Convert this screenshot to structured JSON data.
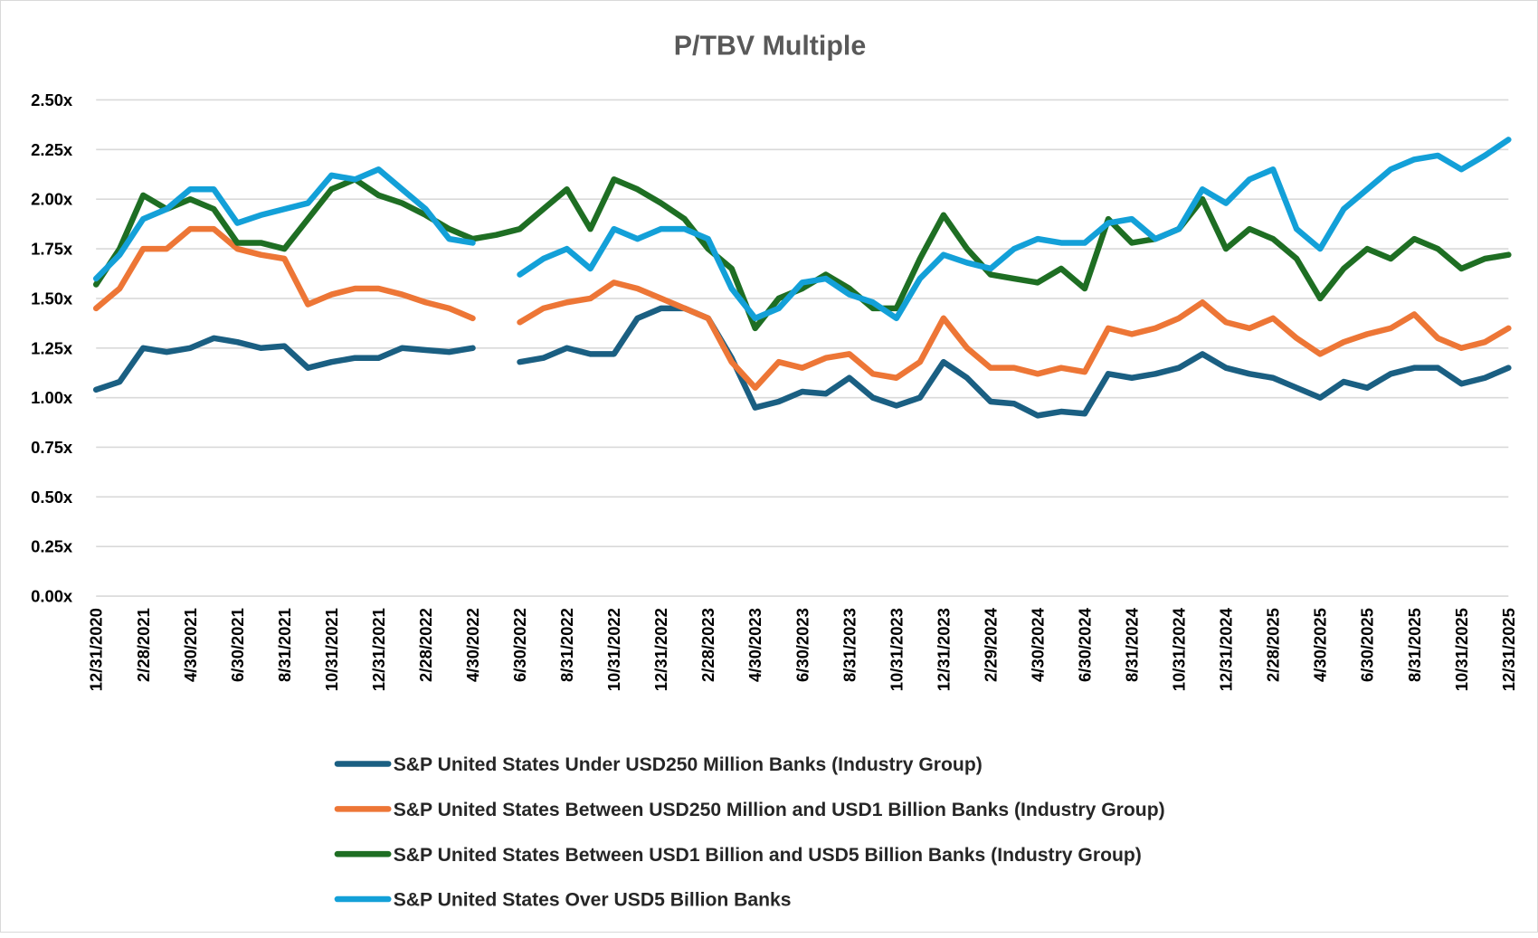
{
  "chart_data": {
    "type": "line",
    "title": "P/TBV Multiple",
    "xlabel": "",
    "ylabel": "",
    "ylim": [
      0,
      2.5
    ],
    "yticks": [
      "0.00x",
      "0.25x",
      "0.50x",
      "0.75x",
      "1.00x",
      "1.25x",
      "1.50x",
      "1.75x",
      "2.00x",
      "2.25x",
      "2.50x"
    ],
    "ytick_values": [
      0,
      0.25,
      0.5,
      0.75,
      1,
      1.25,
      1.5,
      1.75,
      2,
      2.25,
      2.5
    ],
    "grid": true,
    "legend_position": "bottom",
    "xtick_labels": [
      "12/31/2020",
      "2/28/2021",
      "4/30/2021",
      "6/30/2021",
      "8/31/2021",
      "10/31/2021",
      "12/31/2021",
      "2/28/2022",
      "4/30/2022",
      "6/30/2022",
      "8/31/2022",
      "10/31/2022",
      "12/31/2022",
      "2/28/2023",
      "4/30/2023",
      "6/30/2023",
      "8/31/2023",
      "10/31/2023",
      "12/31/2023",
      "2/29/2024",
      "4/30/2024",
      "6/30/2024",
      "8/31/2024",
      "10/31/2024",
      "12/31/2024",
      "2/28/2025",
      "4/30/2025",
      "6/30/2025",
      "8/31/2025",
      "10/31/2025",
      "12/31/2025"
    ],
    "x": [
      "12/31/2020",
      "1/31/2021",
      "2/28/2021",
      "3/31/2021",
      "4/30/2021",
      "5/31/2021",
      "6/30/2021",
      "7/31/2021",
      "8/31/2021",
      "9/30/2021",
      "10/31/2021",
      "11/30/2021",
      "12/31/2021",
      "1/31/2022",
      "2/28/2022",
      "3/31/2022",
      "4/30/2022",
      "5/31/2022",
      "6/30/2022",
      "7/31/2022",
      "8/31/2022",
      "9/30/2022",
      "10/31/2022",
      "11/30/2022",
      "12/31/2022",
      "1/31/2023",
      "2/28/2023",
      "3/31/2023",
      "4/30/2023",
      "5/31/2023",
      "6/30/2023",
      "7/31/2023",
      "8/31/2023",
      "9/30/2023",
      "10/31/2023",
      "11/30/2023",
      "12/31/2023",
      "1/31/2024",
      "2/29/2024",
      "3/31/2024",
      "4/30/2024",
      "5/31/2024",
      "6/30/2024",
      "7/31/2024",
      "8/31/2024",
      "9/30/2024",
      "10/31/2024",
      "11/30/2024",
      "12/31/2024",
      "1/31/2025",
      "2/28/2025",
      "3/31/2025",
      "4/30/2025",
      "5/31/2025",
      "6/30/2025",
      "7/31/2025",
      "8/31/2025",
      "9/30/2025",
      "10/31/2025",
      "11/30/2025",
      "12/31/2025"
    ],
    "series": [
      {
        "name": "S&P United States Under USD250 Million Banks (Industry Group)",
        "color": "#1a5f82",
        "values": [
          1.04,
          1.08,
          1.25,
          1.23,
          1.25,
          1.3,
          1.28,
          1.25,
          1.26,
          1.15,
          1.18,
          1.2,
          1.2,
          1.25,
          1.24,
          1.23,
          1.25,
          null,
          1.18,
          1.2,
          1.25,
          1.22,
          1.22,
          1.4,
          1.45,
          1.45,
          1.4,
          1.2,
          0.95,
          0.98,
          1.03,
          1.02,
          1.1,
          1.0,
          0.96,
          1.0,
          1.18,
          1.1,
          0.98,
          0.97,
          0.91,
          0.93,
          0.92,
          1.12,
          1.1,
          1.12,
          1.15,
          1.22,
          1.15,
          1.12,
          1.1,
          1.05,
          1.0,
          1.08,
          1.05,
          1.12,
          1.15,
          1.15,
          1.07,
          1.1,
          1.15
        ]
      },
      {
        "name": "S&P United States Between USD250 Million and USD1 Billion Banks (Industry Group)",
        "color": "#ed7636",
        "values": [
          1.45,
          1.55,
          1.75,
          1.75,
          1.85,
          1.85,
          1.75,
          1.72,
          1.7,
          1.47,
          1.52,
          1.55,
          1.55,
          1.52,
          1.48,
          1.45,
          1.4,
          null,
          1.38,
          1.45,
          1.48,
          1.5,
          1.58,
          1.55,
          1.5,
          1.45,
          1.4,
          1.18,
          1.05,
          1.18,
          1.15,
          1.2,
          1.22,
          1.12,
          1.1,
          1.18,
          1.4,
          1.25,
          1.15,
          1.15,
          1.12,
          1.15,
          1.13,
          1.35,
          1.32,
          1.35,
          1.4,
          1.48,
          1.38,
          1.35,
          1.4,
          1.3,
          1.22,
          1.28,
          1.32,
          1.35,
          1.42,
          1.3,
          1.25,
          1.28,
          1.35
        ]
      },
      {
        "name": "S&P United States Between USD1 Billion and USD5 Billion Banks (Industry Group)",
        "color": "#1e6e23",
        "values": [
          1.57,
          1.75,
          2.02,
          1.95,
          2.0,
          1.95,
          1.78,
          1.78,
          1.75,
          1.9,
          2.05,
          2.1,
          2.02,
          1.98,
          1.92,
          1.85,
          1.8,
          1.82,
          1.85,
          1.95,
          2.05,
          1.85,
          2.1,
          2.05,
          1.98,
          1.9,
          1.75,
          1.65,
          1.35,
          1.5,
          1.55,
          1.62,
          1.55,
          1.45,
          1.45,
          1.7,
          1.92,
          1.75,
          1.62,
          1.6,
          1.58,
          1.65,
          1.55,
          1.9,
          1.78,
          1.8,
          1.85,
          2.0,
          1.75,
          1.85,
          1.8,
          1.7,
          1.5,
          1.65,
          1.75,
          1.7,
          1.8,
          1.75,
          1.65,
          1.7,
          1.72
        ]
      },
      {
        "name": "S&P United States Over USD5 Billion Banks",
        "color": "#13a0d8",
        "values": [
          1.6,
          1.72,
          1.9,
          1.95,
          2.05,
          2.05,
          1.88,
          1.92,
          1.95,
          1.98,
          2.12,
          2.1,
          2.15,
          2.05,
          1.95,
          1.8,
          1.78,
          null,
          1.62,
          1.7,
          1.75,
          1.65,
          1.85,
          1.8,
          1.85,
          1.85,
          1.8,
          1.55,
          1.4,
          1.45,
          1.58,
          1.6,
          1.52,
          1.48,
          1.4,
          1.6,
          1.72,
          1.68,
          1.65,
          1.75,
          1.8,
          1.78,
          1.78,
          1.88,
          1.9,
          1.8,
          1.85,
          2.05,
          1.98,
          2.1,
          2.15,
          1.85,
          1.75,
          1.95,
          2.05,
          2.15,
          2.2,
          2.22,
          2.15,
          2.22,
          2.3
        ]
      }
    ]
  }
}
